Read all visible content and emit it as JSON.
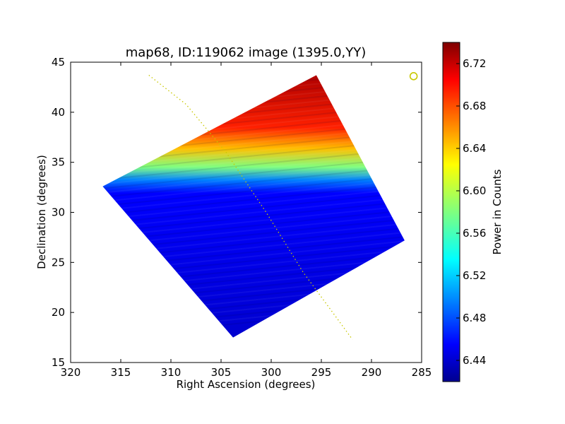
{
  "chart_data": {
    "type": "heatmap",
    "title": "map68, ID:119062 image (1395.0,YY)",
    "xlabel": "Right Ascension (degrees)",
    "ylabel": "Declination (degrees)",
    "xlim": [
      320,
      285
    ],
    "ylim": [
      15,
      45
    ],
    "x_ticks": [
      320,
      315,
      310,
      305,
      300,
      295,
      290,
      285
    ],
    "y_ticks": [
      15,
      20,
      25,
      30,
      35,
      40,
      45
    ],
    "x_tick_labels": [
      "320",
      "315",
      "310",
      "305",
      "300",
      "295",
      "290",
      "285"
    ],
    "y_tick_labels": [
      "15",
      "20",
      "25",
      "30",
      "35",
      "40",
      "45"
    ],
    "colorbar": {
      "label": "Power in Counts",
      "range": [
        6.42,
        6.74
      ],
      "ticks": [
        6.44,
        6.48,
        6.52,
        6.56,
        6.6,
        6.64,
        6.68,
        6.72
      ],
      "tick_labels": [
        "6.44",
        "6.48",
        "6.52",
        "6.56",
        "6.60",
        "6.64",
        "6.68",
        "6.72"
      ],
      "colormap": "jet"
    },
    "map_region": {
      "corners": [
        {
          "ra": 316.8,
          "dec": 32.6
        },
        {
          "ra": 295.5,
          "dec": 43.7
        },
        {
          "ra": 286.7,
          "dec": 27.2
        },
        {
          "ra": 303.8,
          "dec": 17.5
        }
      ],
      "power_profile_by_dec_fraction": [
        {
          "frac": 0.0,
          "power": 6.445
        },
        {
          "frac": 0.55,
          "power": 6.46
        },
        {
          "frac": 0.6,
          "power": 6.5
        },
        {
          "frac": 0.65,
          "power": 6.58
        },
        {
          "frac": 0.72,
          "power": 6.64
        },
        {
          "frac": 0.8,
          "power": 6.69
        },
        {
          "frac": 1.0,
          "power": 6.725
        }
      ]
    },
    "track_line": {
      "style": "dotted",
      "color": "#c8c800",
      "points": [
        {
          "ra": 312.2,
          "dec": 43.7
        },
        {
          "ra": 308.5,
          "dec": 40.8
        },
        {
          "ra": 304.5,
          "dec": 36.0
        },
        {
          "ra": 300.5,
          "dec": 30.0
        },
        {
          "ra": 296.8,
          "dec": 24.0
        },
        {
          "ra": 293.5,
          "dec": 19.5
        },
        {
          "ra": 291.9,
          "dec": 17.3
        }
      ]
    },
    "marker": {
      "ra": 285.8,
      "dec": 43.6,
      "shape": "circle",
      "color": "#c8c800"
    }
  }
}
